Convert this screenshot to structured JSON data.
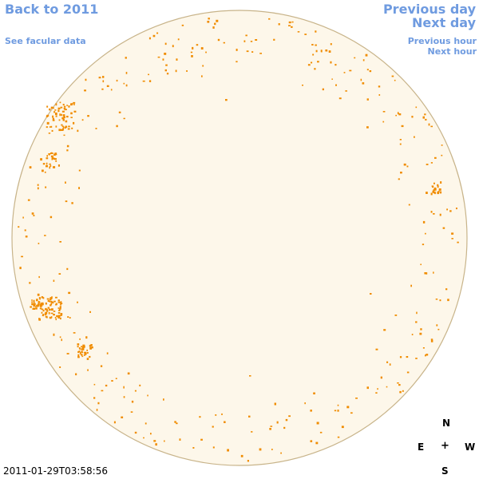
{
  "nav": {
    "back_label": "Back to 2011",
    "facular_label": "See facular data",
    "prev_day_label": "Previous day",
    "next_day_label": "Next day",
    "prev_hour_label": "Previous hour",
    "next_hour_label": "Next hour"
  },
  "timestamp": "2011-01-29T03:58:56",
  "compass": {
    "north": "N",
    "east": "E",
    "center": "+",
    "west": "W",
    "south": "S"
  },
  "colors": {
    "link": "#6f9be0",
    "disk_fill": "#fdf7ea",
    "disk_edge": "#c8b48a",
    "feature": "#f08c00"
  },
  "icons": {
    "compass": "compass-rose-icon"
  }
}
